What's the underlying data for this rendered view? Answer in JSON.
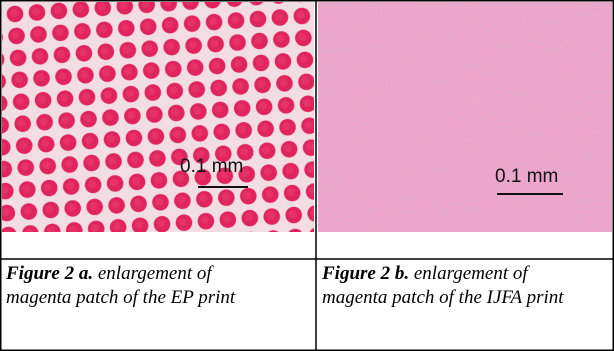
{
  "figures": [
    {
      "scale_label": "0.1 mm",
      "caption_label": "Figure 2 a.",
      "caption_text": " enlargement of magenta patch of the EP print"
    },
    {
      "scale_label": "0.1 mm",
      "caption_label": "Figure 2 b.",
      "caption_text": " enlargement of magenta patch of the IJFA print"
    }
  ]
}
